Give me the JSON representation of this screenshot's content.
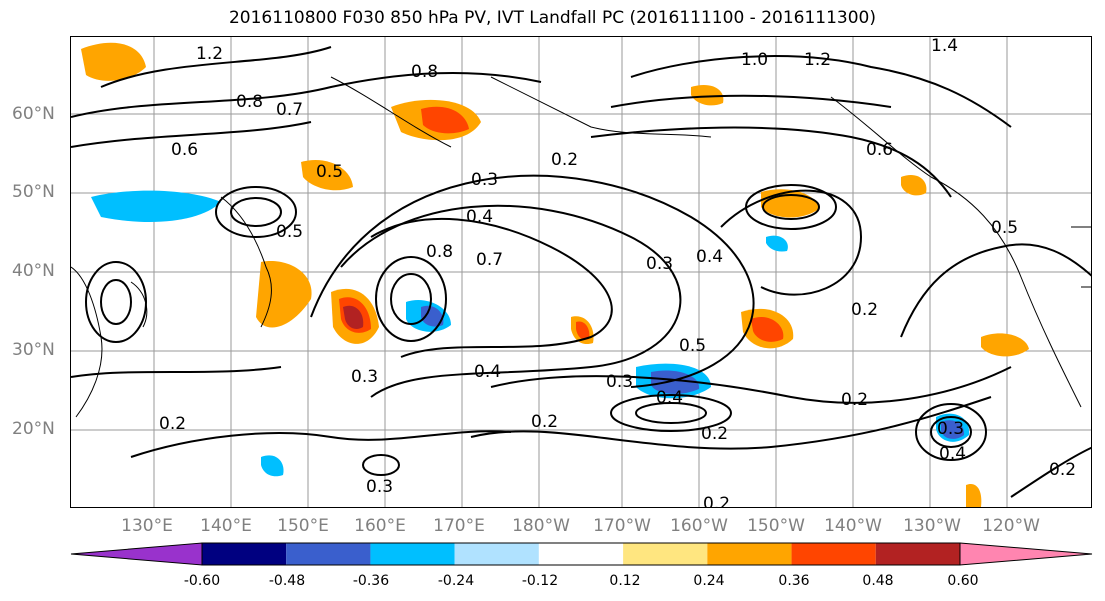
{
  "title": "2016110800 F030 850 hPa PV, IVT Landfall PC (2016111100 - 2016111300)",
  "lat_labels": [
    "60°N",
    "50°N",
    "40°N",
    "30°N",
    "20°N"
  ],
  "lon_labels": [
    "130°E",
    "140°E",
    "150°E",
    "160°E",
    "170°E",
    "180°W",
    "170°W",
    "160°W",
    "150°W",
    "140°W",
    "130°W",
    "120°W"
  ],
  "contour_labels": [
    "1.2",
    "0.8",
    "0.7",
    "0.6",
    "0.5",
    "0.5",
    "1.0",
    "1.2",
    "1.4",
    "0.8",
    "0.6",
    "0.3",
    "0.2",
    "0.4",
    "0.4",
    "0.8",
    "0.7",
    "0.3",
    "0.4",
    "0.5",
    "0.3",
    "0.4",
    "0.2",
    "0.2",
    "0.5",
    "0.2",
    "0.3",
    "0.4",
    "0.2",
    "0.3",
    "0.3",
    "0.2",
    "0.2",
    "0.2"
  ],
  "colorbar": {
    "ticks": [
      "-0.60",
      "-0.48",
      "-0.36",
      "-0.24",
      "-0.12",
      "0.12",
      "0.24",
      "0.36",
      "0.48",
      "0.60"
    ],
    "colors": [
      "#9932cc",
      "#000080",
      "#3a5fcd",
      "#00bfff",
      "#b0e2ff",
      "#ffffff",
      "#ffe680",
      "#ffa500",
      "#ff4500",
      "#b22222",
      "#ff85b0"
    ]
  }
}
